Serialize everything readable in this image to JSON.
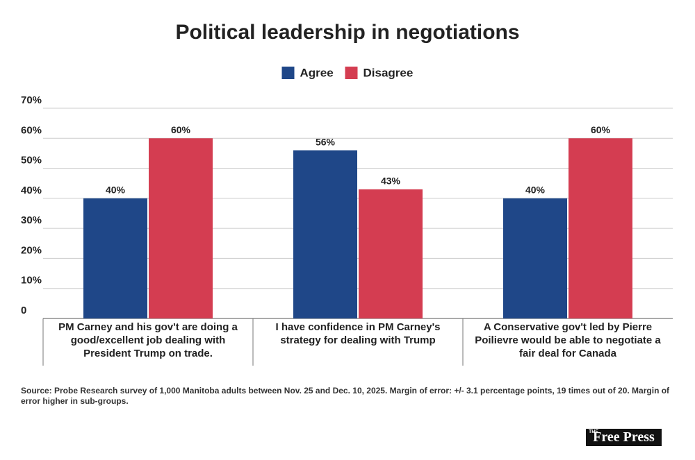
{
  "chart_data": {
    "type": "bar",
    "title": "Political leadership in negotiations",
    "categories": [
      "PM Carney and his gov't are doing a good/excellent job dealing with President Trump on trade.",
      "I have confidence in PM Carney's strategy for dealing with Trump",
      "A Conservative gov't led by Pierre Poilievre would be able to negotiate a fair deal for Canada"
    ],
    "series": [
      {
        "name": "Agree",
        "color": "#1f4788",
        "values": [
          40,
          56,
          40
        ],
        "value_labels": [
          "40%",
          "56%",
          "40%"
        ]
      },
      {
        "name": "Disagree",
        "color": "#d43d51",
        "values": [
          60,
          43,
          60
        ],
        "value_labels": [
          "60%",
          "43%",
          "60%"
        ]
      }
    ],
    "ylim": [
      0,
      70
    ],
    "yticks": [
      0,
      {
        "value": 10,
        "label": "10%"
      },
      {
        "value": 20,
        "label": "20%"
      },
      {
        "value": 30,
        "label": "30%"
      },
      {
        "value": 40,
        "label": "40%"
      },
      {
        "value": 50,
        "label": "50%"
      },
      {
        "value": 60,
        "label": "60%"
      },
      {
        "value": 70,
        "label": "70%"
      }
    ],
    "grid": true,
    "legend": "top",
    "source": "Source: Probe Research survey of 1,000 Manitoba adults between Nov. 25 and Dec. 10, 2025. Margin of error: +/- 3.1 percentage points, 19 times out of 20. Margin of error higher in sub-groups.",
    "logo": {
      "small": "THE",
      "text": "Free Press"
    }
  }
}
